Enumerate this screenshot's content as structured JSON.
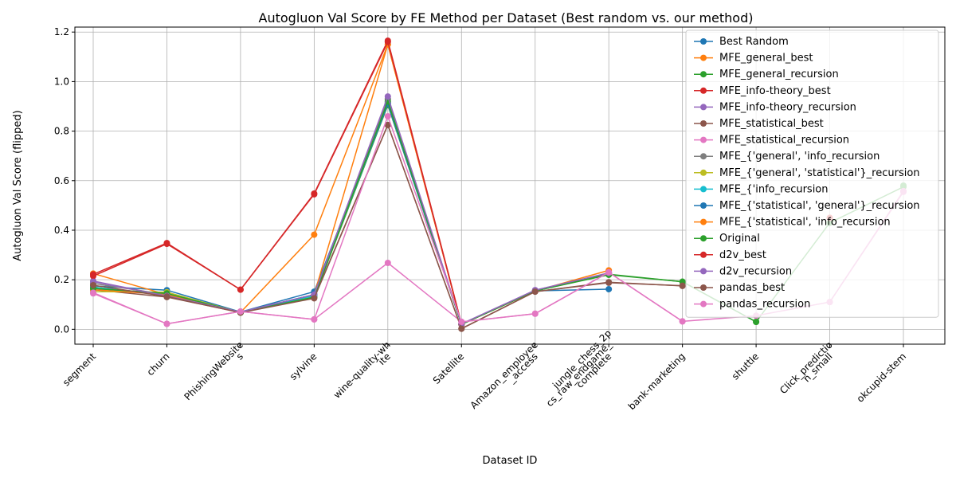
{
  "chart_data": {
    "type": "line",
    "title": "Autogluon Val Score by FE Method per Dataset (Best random vs. our method)",
    "xlabel": "Dataset ID",
    "ylabel": "Autogluon Val Score (flipped)",
    "ylim": [
      -0.06,
      1.22
    ],
    "yticks": [
      "0.0",
      "0.2",
      "0.4",
      "0.6",
      "0.8",
      "1.0",
      "1.2"
    ],
    "ytick_values": [
      0.0,
      0.2,
      0.4,
      0.6,
      0.8,
      1.0,
      1.2
    ],
    "grid": true,
    "legend_position": "top-right",
    "categories": [
      "segment",
      "churn",
      "PhishingWebsites",
      "sylvine",
      "wine-quality-white",
      "Satellite",
      "Amazon_employee_access",
      "jungle_chess_2pcs_raw_endgame_complete",
      "bank-marketing",
      "shuttle",
      "Click_prediction_small",
      "okcupid-stem"
    ],
    "category_display": [
      [
        "segment"
      ],
      [
        "churn"
      ],
      [
        "PhishingWebsite",
        "s"
      ],
      [
        "sylvine"
      ],
      [
        "wine-quality-wh",
        "ite"
      ],
      [
        "Satellite"
      ],
      [
        "Amazon_employee",
        "_access"
      ],
      [
        "jungle_chess_2p",
        "cs_raw_endgame_",
        "complete"
      ],
      [
        "bank-marketing"
      ],
      [
        "shuttle"
      ],
      [
        "Click_predictio",
        "n_small"
      ],
      [
        "okcupid-stem"
      ]
    ],
    "series": [
      {
        "name": "Best Random",
        "color": "#1f77b4",
        "values": [
          0.175,
          0.158,
          0.07,
          0.152,
          0.915,
          0.02,
          0.155,
          0.162,
          null,
          null,
          null,
          null
        ]
      },
      {
        "name": "MFE_general_best",
        "color": "#ff7f0e",
        "values": [
          0.225,
          0.14,
          0.068,
          0.14,
          1.15,
          0.02,
          0.155,
          0.238,
          null,
          null,
          null,
          null
        ]
      },
      {
        "name": "MFE_general_recursion",
        "color": "#2ca02c",
        "values": [
          0.17,
          0.14,
          0.068,
          0.13,
          0.905,
          0.02,
          0.155,
          0.22,
          0.192,
          0.03,
          null,
          0.58
        ]
      },
      {
        "name": "MFE_info-theory_best",
        "color": "#d62728",
        "values": [
          0.222,
          0.348,
          0.16,
          0.548,
          1.165,
          0.022,
          null,
          null,
          null,
          null,
          null,
          null
        ]
      },
      {
        "name": "MFE_info-theory_recursion",
        "color": "#9467bd",
        "values": [
          0.195,
          0.135,
          0.07,
          0.14,
          0.93,
          0.022,
          0.158,
          0.225,
          null,
          null,
          null,
          null
        ]
      },
      {
        "name": "MFE_statistical_best",
        "color": "#8c564b",
        "values": [
          0.16,
          0.13,
          0.068,
          0.128,
          0.825,
          0.003,
          0.152,
          0.19,
          0.175,
          null,
          null,
          null
        ]
      },
      {
        "name": "MFE_statistical_recursion",
        "color": "#e377c2",
        "values": [
          0.145,
          0.022,
          0.072,
          0.04,
          0.268,
          0.03,
          0.063,
          0.23,
          0.032,
          null,
          0.11,
          0.555
        ]
      },
      {
        "name": "MFE_{'general', 'info_recursion",
        "color": "#7f7f7f",
        "values": [
          0.185,
          0.14,
          0.07,
          0.14,
          0.93,
          0.02,
          0.155,
          null,
          null,
          null,
          null,
          null
        ]
      },
      {
        "name": "MFE_{'general', 'statistical'}_recursion",
        "color": "#bcbd22",
        "values": [
          0.152,
          0.15,
          0.068,
          0.135,
          0.91,
          0.02,
          0.155,
          null,
          null,
          null,
          null,
          null
        ]
      },
      {
        "name": "MFE_{'info_recursion",
        "color": "#17becf",
        "values": [
          0.17,
          0.14,
          0.068,
          0.135,
          0.91,
          0.02,
          0.155,
          null,
          null,
          null,
          null,
          null
        ]
      },
      {
        "name": "MFE_{'statistical', 'general'}_recursion",
        "color": "#1f77b4",
        "values": [
          0.165,
          0.14,
          0.068,
          0.14,
          0.91,
          0.02,
          0.155,
          null,
          null,
          null,
          null,
          null
        ]
      },
      {
        "name": "MFE_{'statistical', 'info_recursion",
        "color": "#ff7f0e",
        "values": [
          0.16,
          0.14,
          0.068,
          0.382,
          1.15,
          0.02,
          0.155,
          null,
          null,
          null,
          null,
          null
        ]
      },
      {
        "name": "Original",
        "color": "#2ca02c",
        "values": [
          0.165,
          0.145,
          0.068,
          0.13,
          0.92,
          0.02,
          0.155,
          0.222,
          0.192,
          0.03,
          0.43,
          0.575
        ]
      },
      {
        "name": "d2v_best",
        "color": "#d62728",
        "values": [
          0.215,
          0.345,
          0.16,
          0.545,
          1.16,
          0.02,
          null,
          null,
          null,
          null,
          0.45,
          null
        ]
      },
      {
        "name": "d2v_recursion",
        "color": "#9467bd",
        "values": [
          0.192,
          0.135,
          0.07,
          0.14,
          0.94,
          0.022,
          0.158,
          0.228,
          null,
          null,
          null,
          null
        ]
      },
      {
        "name": "pandas_best",
        "color": "#8c564b",
        "values": [
          0.178,
          0.132,
          0.067,
          0.125,
          0.825,
          0.002,
          0.152,
          0.188,
          0.176,
          null,
          null,
          null
        ]
      },
      {
        "name": "pandas_recursion",
        "color": "#e377c2",
        "values": [
          0.148,
          0.022,
          0.072,
          0.04,
          0.86,
          0.03,
          0.063,
          0.23,
          0.032,
          0.055,
          0.11,
          0.558
        ]
      }
    ]
  }
}
